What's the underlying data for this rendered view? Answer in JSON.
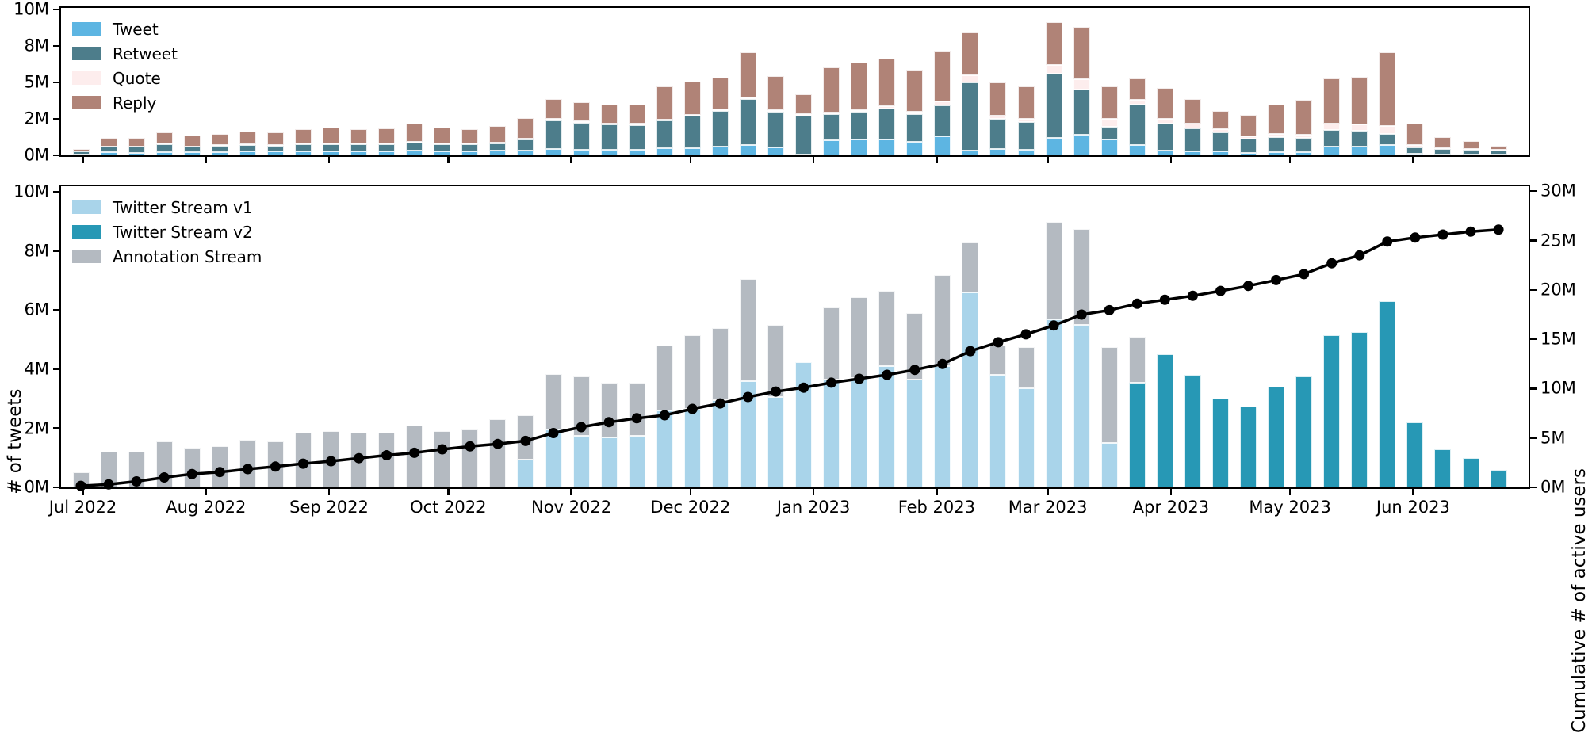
{
  "figure": {
    "ylabel_left": "# of tweets",
    "ylabel_right": "Cumulative # of active users",
    "background": "#ffffff",
    "week_start_dates": [
      "2022-06-27",
      "2022-07-04",
      "2022-07-11",
      "2022-07-18",
      "2022-07-25",
      "2022-08-01",
      "2022-08-08",
      "2022-08-15",
      "2022-08-22",
      "2022-08-29",
      "2022-09-05",
      "2022-09-12",
      "2022-09-19",
      "2022-09-26",
      "2022-10-03",
      "2022-10-10",
      "2022-10-17",
      "2022-10-24",
      "2022-10-31",
      "2022-11-07",
      "2022-11-14",
      "2022-11-21",
      "2022-11-28",
      "2022-12-05",
      "2022-12-12",
      "2022-12-19",
      "2022-12-26",
      "2023-01-02",
      "2023-01-09",
      "2023-01-16",
      "2023-01-23",
      "2023-01-30",
      "2023-02-06",
      "2023-02-13",
      "2023-02-20",
      "2023-02-27",
      "2023-03-06",
      "2023-03-13",
      "2023-03-20",
      "2023-03-27",
      "2023-04-03",
      "2023-04-10",
      "2023-04-17",
      "2023-04-24",
      "2023-05-01",
      "2023-05-08",
      "2023-05-15",
      "2023-05-22",
      "2023-05-29",
      "2023-06-05",
      "2023-06-12",
      "2023-06-19"
    ],
    "month_ticks": [
      {
        "date": "2022-07-01",
        "label": "Jul 2022"
      },
      {
        "date": "2022-08-01",
        "label": "Aug 2022"
      },
      {
        "date": "2022-09-01",
        "label": "Sep 2022"
      },
      {
        "date": "2022-10-01",
        "label": "Oct 2022"
      },
      {
        "date": "2022-11-01",
        "label": "Nov 2022"
      },
      {
        "date": "2022-12-01",
        "label": "Dec 2022"
      },
      {
        "date": "2023-01-01",
        "label": "Jan 2023"
      },
      {
        "date": "2023-02-01",
        "label": "Feb 2023"
      },
      {
        "date": "2023-03-01",
        "label": "Mar 2023"
      },
      {
        "date": "2023-04-01",
        "label": "Apr 2023"
      },
      {
        "date": "2023-05-01",
        "label": "May 2023"
      },
      {
        "date": "2023-06-01",
        "label": "Jun 2023"
      }
    ]
  },
  "chart_data": [
    {
      "type": "bar",
      "stacked": true,
      "name": "tweet-types-by-week",
      "unit": "millions of tweets per week",
      "ylim": [
        0,
        10.1
      ],
      "grid": false,
      "legend_position": "upper-left",
      "yticks": [
        {
          "value": 0,
          "label": "0M"
        },
        {
          "value": 2.5,
          "label": "2M"
        },
        {
          "value": 5,
          "label": "5M"
        },
        {
          "value": 7.5,
          "label": "8M"
        },
        {
          "value": 10,
          "label": "10M"
        }
      ],
      "series": [
        {
          "name": "Tweet",
          "color": "#5db5e2",
          "values": [
            0.06,
            0.2,
            0.18,
            0.22,
            0.2,
            0.22,
            0.25,
            0.25,
            0.27,
            0.28,
            0.28,
            0.28,
            0.3,
            0.28,
            0.28,
            0.3,
            0.32,
            0.45,
            0.4,
            0.38,
            0.38,
            0.5,
            0.5,
            0.62,
            0.73,
            0.55,
            0.07,
            1.05,
            1.1,
            1.1,
            0.95,
            1.3,
            0.35,
            0.45,
            0.4,
            1.2,
            1.4,
            1.1,
            0.7,
            0.3,
            0.25,
            0.25,
            0.15,
            0.2,
            0.2,
            0.6,
            0.6,
            0.7,
            0.1,
            0.07,
            0.05,
            0.04
          ]
        },
        {
          "name": "Retweet",
          "color": "#4d7d8b",
          "values": [
            0.2,
            0.38,
            0.4,
            0.55,
            0.38,
            0.42,
            0.45,
            0.4,
            0.48,
            0.5,
            0.48,
            0.5,
            0.55,
            0.5,
            0.48,
            0.52,
            0.78,
            1.95,
            1.85,
            1.72,
            1.7,
            1.87,
            2.2,
            2.44,
            3.13,
            2.42,
            2.67,
            1.78,
            1.87,
            2.08,
            1.88,
            2.11,
            4.65,
            2.05,
            1.9,
            4.4,
            3.1,
            0.85,
            2.75,
            1.9,
            1.6,
            1.3,
            1.0,
            1.05,
            1.0,
            1.15,
            1.1,
            0.75,
            0.45,
            0.35,
            0.35,
            0.3
          ]
        },
        {
          "name": "Quote",
          "color": "#fdeded",
          "values": [
            0.02,
            0.04,
            0.04,
            0.05,
            0.04,
            0.04,
            0.05,
            0.04,
            0.05,
            0.05,
            0.05,
            0.05,
            0.06,
            0.05,
            0.05,
            0.05,
            0.06,
            0.1,
            0.08,
            0.08,
            0.08,
            0.1,
            0.08,
            0.1,
            0.1,
            0.12,
            0.06,
            0.12,
            0.15,
            0.17,
            0.15,
            0.3,
            0.5,
            0.2,
            0.2,
            0.6,
            0.7,
            0.55,
            0.35,
            0.3,
            0.3,
            0.25,
            0.15,
            0.2,
            0.2,
            0.45,
            0.4,
            0.55,
            0.15,
            0.08,
            0.05,
            0.03
          ]
        },
        {
          "name": "Reply",
          "color": "#b08377",
          "values": [
            0.17,
            0.6,
            0.58,
            0.75,
            0.75,
            0.8,
            0.9,
            0.88,
            1.0,
            1.08,
            1.0,
            1.02,
            1.29,
            1.07,
            0.99,
            1.13,
            1.39,
            1.35,
            1.32,
            1.32,
            1.34,
            2.28,
            2.28,
            2.16,
            3.09,
            2.36,
            1.37,
            3.1,
            3.25,
            3.25,
            2.86,
            3.47,
            2.9,
            2.3,
            2.2,
            2.95,
            3.6,
            2.2,
            1.45,
            2.13,
            1.7,
            1.25,
            1.45,
            2.0,
            2.38,
            3.05,
            3.25,
            5.05,
            1.45,
            0.75,
            0.55,
            0.28
          ]
        }
      ]
    },
    {
      "type": "bar+line",
      "stacked": true,
      "name": "stream-volume-by-week",
      "unit": "millions of tweets per week",
      "ylabel": "# of tweets",
      "ylim": [
        0,
        10.2
      ],
      "grid": false,
      "legend_position": "upper-left",
      "yticks": [
        {
          "value": 0,
          "label": "0M"
        },
        {
          "value": 2,
          "label": "2M"
        },
        {
          "value": 4,
          "label": "4M"
        },
        {
          "value": 6,
          "label": "6M"
        },
        {
          "value": 8,
          "label": "8M"
        },
        {
          "value": 10,
          "label": "10M"
        }
      ],
      "series": [
        {
          "name": "Twitter Stream v1",
          "color": "#a9d4ea",
          "values": [
            0,
            0,
            0,
            0,
            0,
            0,
            0,
            0,
            0,
            0,
            0,
            0,
            0,
            0,
            0,
            0,
            0.95,
            1.95,
            1.75,
            1.7,
            1.75,
            2.6,
            2.65,
            2.95,
            3.6,
            3.05,
            4.25,
            3.65,
            3.7,
            4.1,
            3.65,
            4.1,
            6.6,
            3.8,
            3.35,
            5.7,
            5.5,
            1.5,
            0,
            0,
            0,
            0,
            0,
            0,
            0,
            0,
            0,
            0,
            0,
            0,
            0,
            0
          ]
        },
        {
          "name": "Twitter Stream v2",
          "color": "#2798b5",
          "values": [
            0,
            0,
            0,
            0,
            0,
            0,
            0,
            0,
            0,
            0,
            0,
            0,
            0,
            0,
            0,
            0,
            0,
            0,
            0,
            0,
            0,
            0,
            0,
            0,
            0,
            0,
            0,
            0,
            0,
            0,
            0,
            0,
            0,
            0,
            0,
            0,
            0,
            0,
            3.55,
            4.5,
            3.8,
            3.0,
            2.75,
            3.4,
            3.75,
            5.15,
            5.25,
            6.3,
            2.2,
            1.3,
            1.0,
            0.6
          ]
        },
        {
          "name": "Annotation Stream",
          "color": "#b4bac1",
          "values": [
            0.5,
            1.2,
            1.2,
            1.55,
            1.35,
            1.4,
            1.6,
            1.55,
            1.85,
            1.9,
            1.85,
            1.85,
            2.1,
            1.9,
            1.95,
            2.3,
            1.5,
            1.9,
            2.0,
            1.85,
            1.8,
            2.2,
            2.5,
            2.45,
            3.45,
            2.45,
            0,
            2.45,
            2.75,
            2.55,
            2.25,
            3.1,
            1.7,
            1.0,
            1.4,
            3.3,
            3.25,
            3.25,
            1.55,
            0,
            0,
            0,
            0,
            0,
            0,
            0,
            0,
            0,
            0,
            0,
            0,
            0
          ]
        }
      ],
      "line": {
        "name": "Cumulative # of active users",
        "color": "#000000",
        "axis": "right",
        "unit": "millions of users",
        "values": [
          0.15,
          0.3,
          0.6,
          1.0,
          1.35,
          1.55,
          1.85,
          2.1,
          2.4,
          2.65,
          2.95,
          3.25,
          3.5,
          3.85,
          4.15,
          4.4,
          4.7,
          5.5,
          6.1,
          6.6,
          7.0,
          7.3,
          7.95,
          8.5,
          9.15,
          9.7,
          10.1,
          10.6,
          11.0,
          11.4,
          11.9,
          12.5,
          13.8,
          14.7,
          15.5,
          16.4,
          17.5,
          17.95,
          18.6,
          19.0,
          19.4,
          19.9,
          20.4,
          21.0,
          21.6,
          22.7,
          23.5,
          24.9,
          25.3,
          25.6,
          25.9,
          26.1
        ]
      },
      "ylim_right": [
        0,
        30.5
      ],
      "yticks_right": [
        {
          "value": 0,
          "label": "0M"
        },
        {
          "value": 5,
          "label": "5M"
        },
        {
          "value": 10,
          "label": "10M"
        },
        {
          "value": 15,
          "label": "15M"
        },
        {
          "value": 20,
          "label": "20M"
        },
        {
          "value": 25,
          "label": "25M"
        },
        {
          "value": 30,
          "label": "30M"
        }
      ]
    }
  ]
}
